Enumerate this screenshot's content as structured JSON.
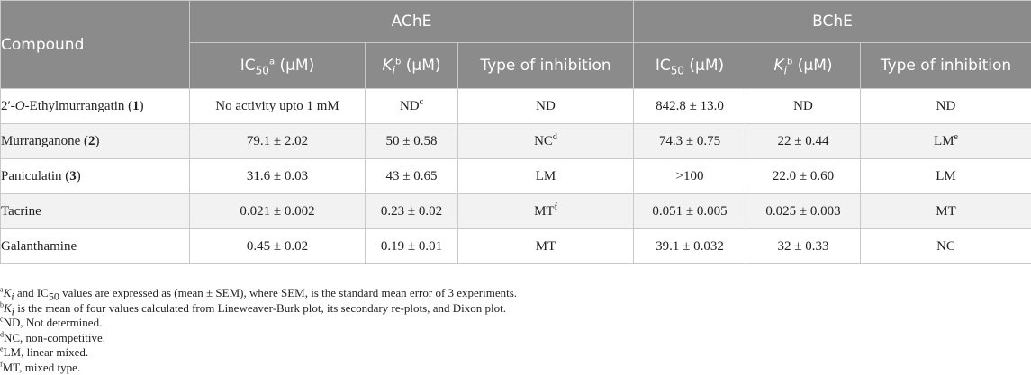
{
  "header": {
    "compound": "Compound",
    "ache": "AChE",
    "bche": "BChE",
    "ic50_base": "IC",
    "ic50_sub": "50",
    "ic50_sup": "a",
    "unit": " (μM)",
    "ki_base": "K",
    "ki_sub": "i",
    "ki_sup": "b",
    "type": "Type of inhibition"
  },
  "rows": [
    {
      "compound_prefix": "2′-",
      "compound_italic": "O",
      "compound_mid": "-Ethylmurrangatin (",
      "compound_num": "1",
      "compound_end": ")",
      "ache_ic50": "No activity upto 1 mM",
      "ache_ki": "ND",
      "ache_ki_sup": "c",
      "ache_type": "ND",
      "ache_type_sup": "",
      "bche_ic50": "842.8 ± 13.0",
      "bche_ki": "ND",
      "bche_type": "ND",
      "bche_type_sup": ""
    },
    {
      "compound_prefix": "Murranganone (",
      "compound_italic": "",
      "compound_mid": "",
      "compound_num": "2",
      "compound_end": ")",
      "ache_ic50": "79.1 ± 2.02",
      "ache_ki": "50 ± 0.58",
      "ache_ki_sup": "",
      "ache_type": "NC",
      "ache_type_sup": "d",
      "bche_ic50": "74.3 ± 0.75",
      "bche_ki": "22 ± 0.44",
      "bche_type": "LM",
      "bche_type_sup": "e"
    },
    {
      "compound_prefix": "Paniculatin (",
      "compound_italic": "",
      "compound_mid": "",
      "compound_num": "3",
      "compound_end": ")",
      "ache_ic50": "31.6 ± 0.03",
      "ache_ki": "43 ± 0.65",
      "ache_ki_sup": "",
      "ache_type": "LM",
      "ache_type_sup": "",
      "bche_ic50": ">100",
      "bche_ki": "22.0 ± 0.60",
      "bche_type": "LM",
      "bche_type_sup": ""
    },
    {
      "compound_prefix": "Tacrine",
      "compound_italic": "",
      "compound_mid": "",
      "compound_num": "",
      "compound_end": "",
      "ache_ic50": "0.021 ± 0.002",
      "ache_ki": "0.23 ± 0.02",
      "ache_ki_sup": "",
      "ache_type": "MT",
      "ache_type_sup": "f",
      "bche_ic50": "0.051 ± 0.005",
      "bche_ki": "0.025 ± 0.003",
      "bche_type": "MT",
      "bche_type_sup": ""
    },
    {
      "compound_prefix": "Galanthamine",
      "compound_italic": "",
      "compound_mid": "",
      "compound_num": "",
      "compound_end": "",
      "ache_ic50": "0.45 ± 0.02",
      "ache_ki": "0.19 ± 0.01",
      "ache_ki_sup": "",
      "ache_type": "MT",
      "ache_type_sup": "",
      "bche_ic50": "39.1 ± 0.032",
      "bche_ki": "32 ± 0.33",
      "bche_type": "NC",
      "bche_type_sup": ""
    }
  ],
  "footnotes": [
    {
      "mark": "a",
      "ki_base": "K",
      "ki_sub": "i",
      "mid": " and IC",
      "ic_sub": "50",
      "text": " values are expressed as (mean ± SEM), where SEM, is the standard mean error of 3 experiments."
    },
    {
      "mark": "b",
      "ki_base": "K",
      "ki_sub": "i",
      "text": " is the mean of four values calculated from Lineweaver-Burk plot, its secondary re-plots, and Dixon plot."
    },
    {
      "mark": "c",
      "text": "ND, Not determined."
    },
    {
      "mark": "d",
      "text": "NC, non-competitive."
    },
    {
      "mark": "e",
      "text": "LM, linear mixed."
    },
    {
      "mark": "f",
      "text": "MT, mixed type."
    }
  ]
}
